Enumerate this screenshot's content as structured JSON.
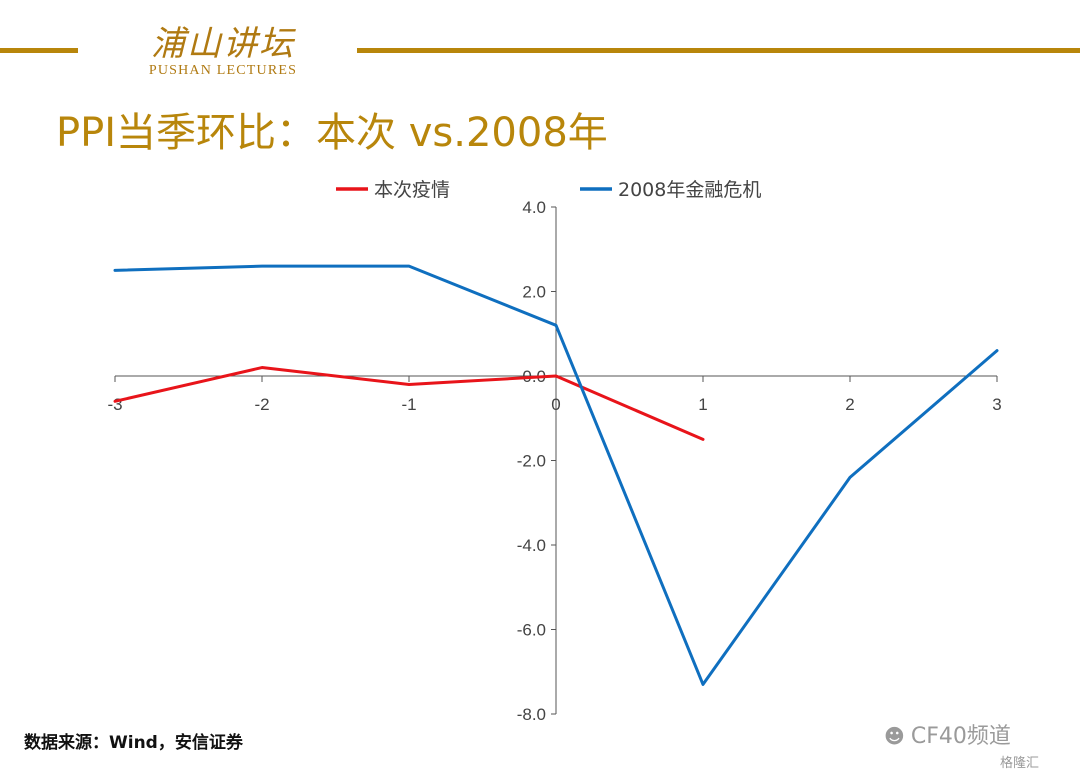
{
  "header": {
    "logo_cn": "浦山讲坛",
    "logo_en": "PUSHAN LECTURES",
    "title": "PPI当季环比：本次 vs.2008年"
  },
  "source_note": "数据来源：Wind，安信证券",
  "watermark": {
    "icon": "wechat-icon",
    "text": "CF40频道"
  },
  "corner_logo": "格隆汇",
  "colors": {
    "gold": "#b8860b",
    "series1": "#e8141a",
    "series2": "#0f6fbf",
    "axis": "#555555"
  },
  "chart_data": {
    "type": "line",
    "title": "",
    "xlabel": "",
    "ylabel": "",
    "x_ticks": [
      "-3",
      "-2",
      "-1",
      "0",
      "1",
      "2",
      "3"
    ],
    "y_ticks": [
      "4.0",
      "2.0",
      "0.0",
      "-2.0",
      "-4.0",
      "-6.0",
      "-8.0"
    ],
    "xlim": [
      -3,
      3
    ],
    "ylim": [
      -8,
      4
    ],
    "legend_position": "top",
    "series": [
      {
        "name": "本次疫情",
        "color": "#e8141a",
        "x": [
          -3,
          -2,
          -1,
          0,
          1
        ],
        "y": [
          -0.6,
          0.2,
          -0.2,
          0.0,
          -1.5
        ]
      },
      {
        "name": "2008年金融危机",
        "color": "#0f6fbf",
        "x": [
          -3,
          -2,
          -1,
          0,
          1,
          2,
          3
        ],
        "y": [
          2.5,
          2.6,
          2.6,
          1.2,
          -7.3,
          -2.4,
          0.6
        ]
      }
    ]
  }
}
